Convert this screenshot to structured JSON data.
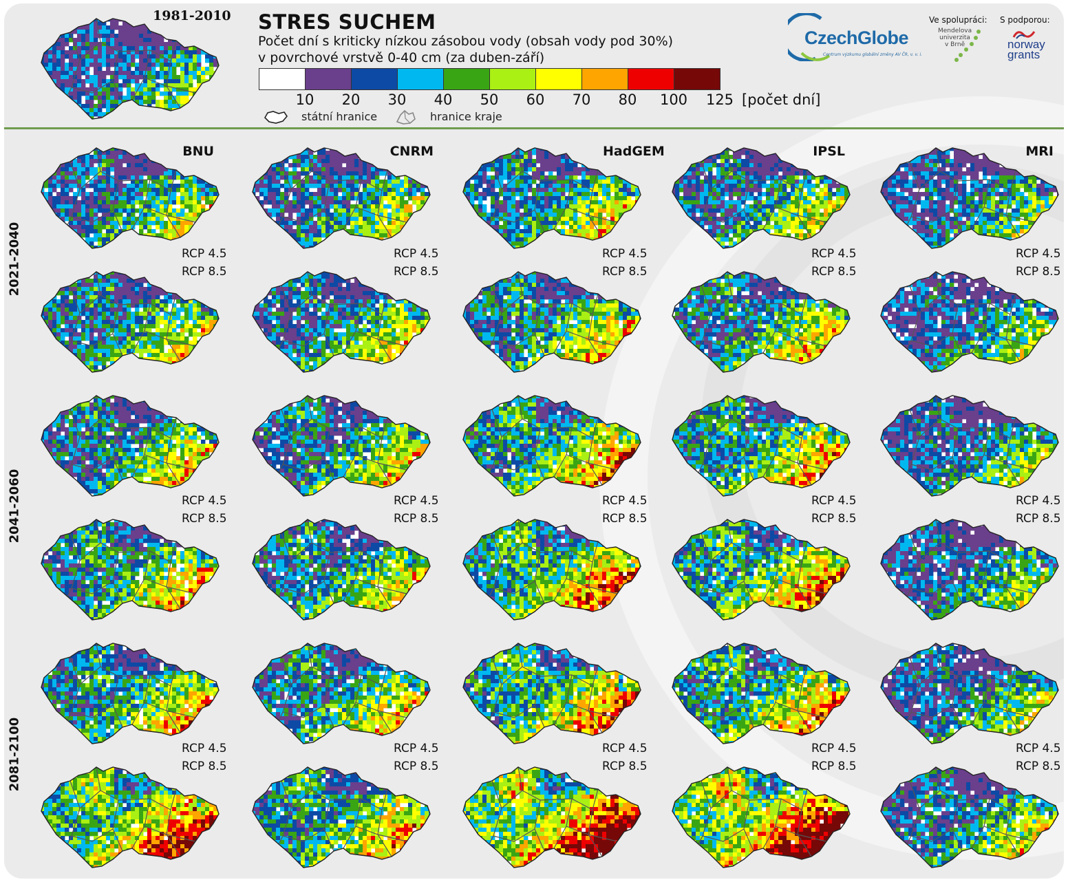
{
  "title": "STRES SUCHEM",
  "subtitle_line1": "Počet dní s kriticky nízkou zásobou vody (obsah vody pod 30%)",
  "subtitle_line2": "v povrchové vrstvě 0-40 cm (za duben-září)",
  "baseline_period": "1981-2010",
  "legend": {
    "colors": [
      "#ffffff",
      "#6a3f8c",
      "#0d4aa5",
      "#00b8f0",
      "#3aa514",
      "#aaf014",
      "#ffff00",
      "#ffa500",
      "#ee0000",
      "#760808"
    ],
    "ticks": [
      "10",
      "20",
      "30",
      "40",
      "50",
      "60",
      "70",
      "80",
      "100",
      "125"
    ],
    "unit": "[počet dní]",
    "state_border_label": "státní hranice",
    "region_border_label": "hranice kraje"
  },
  "models": [
    "BNU",
    "CNRM",
    "HadGEM",
    "IPSL",
    "MRI"
  ],
  "periods": [
    "2021-2040",
    "2041-2060",
    "2081-2100"
  ],
  "scenarios": [
    "RCP 4.5",
    "RCP 8.5"
  ],
  "logos": {
    "czechglobe": "CzechGlobe",
    "czechglobe_sub": "Centrum výzkumu globální změny AV ČR, v. v. i.",
    "cooperation_label": "Ve spolupráci:",
    "mendel": [
      "Mendelova",
      "univerzita",
      "v Brně"
    ],
    "support_label": "S podporou:",
    "norway": [
      "norway",
      "grants"
    ]
  },
  "map_intensity": {
    "baseline": 0.3,
    "rows": [
      [
        0.4,
        0.4,
        0.45,
        0.42,
        0.32
      ],
      [
        0.44,
        0.42,
        0.5,
        0.47,
        0.33
      ],
      [
        0.47,
        0.45,
        0.58,
        0.54,
        0.35
      ],
      [
        0.52,
        0.47,
        0.64,
        0.6,
        0.34
      ],
      [
        0.52,
        0.48,
        0.62,
        0.58,
        0.35
      ],
      [
        0.74,
        0.55,
        0.86,
        0.86,
        0.42
      ]
    ]
  }
}
